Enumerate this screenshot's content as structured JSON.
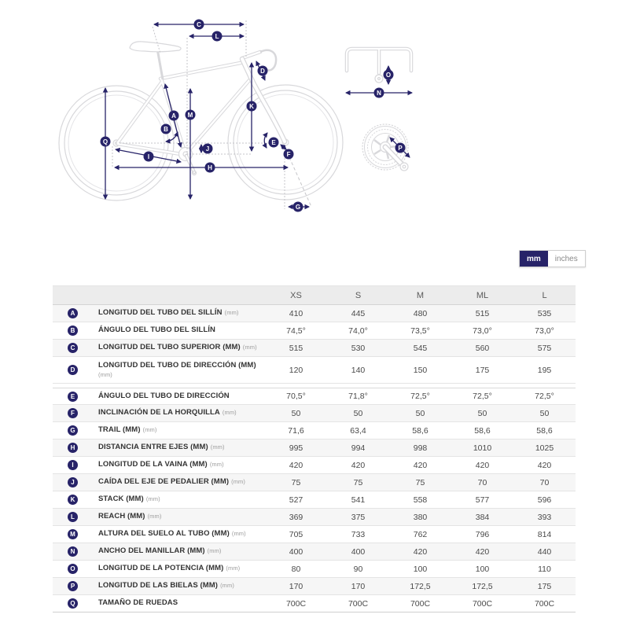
{
  "units_toggle": {
    "options": [
      {
        "label": "mm",
        "active": true
      },
      {
        "label": "inches",
        "active": false
      }
    ]
  },
  "table": {
    "columns": [
      "XS",
      "S",
      "M",
      "ML",
      "L"
    ],
    "rows": [
      {
        "key": "A",
        "label": "LONGITUD DEL TUBO DEL SILLÍN",
        "suffix": "(mm)",
        "values": [
          "410",
          "445",
          "480",
          "515",
          "535"
        ]
      },
      {
        "key": "B",
        "label": "ÁNGULO DEL TUBO DEL SILLÍN",
        "suffix": "",
        "values": [
          "74,5°",
          "74,0°",
          "73,5°",
          "73,0°",
          "73,0°"
        ]
      },
      {
        "key": "C",
        "label": "LONGITUD DEL TUBO SUPERIOR (MM)",
        "suffix": "(mm)",
        "values": [
          "515",
          "530",
          "545",
          "560",
          "575"
        ]
      },
      {
        "key": "D",
        "label": "LONGITUD DEL TUBO DE DIRECCIÓN (MM)",
        "suffix": "(mm)",
        "values": [
          "120",
          "140",
          "150",
          "175",
          "195"
        ]
      },
      {
        "key": "E",
        "label": "ÁNGULO DEL TUBO DE DIRECCIÓN",
        "suffix": "",
        "values": [
          "70,5°",
          "71,8°",
          "72,5°",
          "72,5°",
          "72,5°"
        ]
      },
      {
        "key": "F",
        "label": "INCLINACIÓN DE LA HORQUILLA",
        "suffix": "(mm)",
        "values": [
          "50",
          "50",
          "50",
          "50",
          "50"
        ]
      },
      {
        "key": "G",
        "label": "TRAIL (MM)",
        "suffix": "(mm)",
        "values": [
          "71,6",
          "63,4",
          "58,6",
          "58,6",
          "58,6"
        ]
      },
      {
        "key": "H",
        "label": "DISTANCIA ENTRE EJES (MM)",
        "suffix": "(mm)",
        "values": [
          "995",
          "994",
          "998",
          "1010",
          "1025"
        ]
      },
      {
        "key": "I",
        "label": "LONGITUD DE LA VAINA (MM)",
        "suffix": "(mm)",
        "values": [
          "420",
          "420",
          "420",
          "420",
          "420"
        ]
      },
      {
        "key": "J",
        "label": "CAÍDA DEL EJE DE PEDALIER (MM)",
        "suffix": "(mm)",
        "values": [
          "75",
          "75",
          "75",
          "70",
          "70"
        ]
      },
      {
        "key": "K",
        "label": "STACK (MM)",
        "suffix": "(mm)",
        "values": [
          "527",
          "541",
          "558",
          "577",
          "596"
        ]
      },
      {
        "key": "L",
        "label": "REACH (MM)",
        "suffix": "(mm)",
        "values": [
          "369",
          "375",
          "380",
          "384",
          "393"
        ]
      },
      {
        "key": "M",
        "label": "ALTURA DEL SUELO AL TUBO (MM)",
        "suffix": "(mm)",
        "values": [
          "705",
          "733",
          "762",
          "796",
          "814"
        ]
      },
      {
        "key": "N",
        "label": "ANCHO DEL MANILLAR (MM)",
        "suffix": "(mm)",
        "values": [
          "400",
          "400",
          "420",
          "420",
          "440"
        ]
      },
      {
        "key": "O",
        "label": "LONGITUD DE LA POTENCIA (MM)",
        "suffix": "(mm)",
        "values": [
          "80",
          "90",
          "100",
          "100",
          "110"
        ]
      },
      {
        "key": "P",
        "label": "LONGITUD DE LAS BIELAS (MM)",
        "suffix": "(mm)",
        "values": [
          "170",
          "170",
          "172,5",
          "172,5",
          "175"
        ]
      },
      {
        "key": "Q",
        "label": "TAMAÑO DE RUEDAS",
        "suffix": "",
        "values": [
          "700C",
          "700C",
          "700C",
          "700C",
          "700C"
        ]
      }
    ]
  },
  "colors": {
    "accent_navy": "#272368",
    "row_shade": "#f6f6f6",
    "header_bg": "#ececec",
    "drawing_gray": "#d8d8db"
  }
}
